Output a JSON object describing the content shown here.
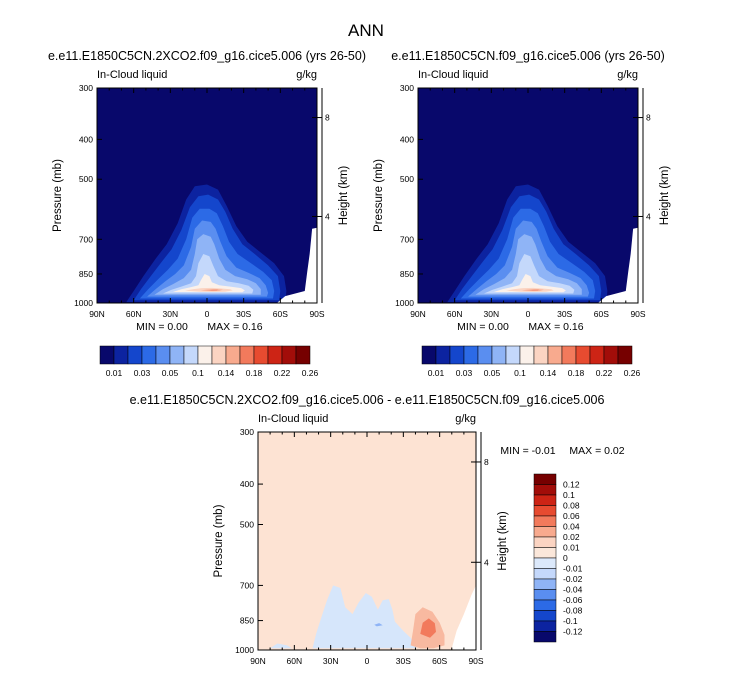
{
  "figure": {
    "title": "ANN"
  },
  "chart_data": [
    {
      "type": "contour",
      "title": "e.e11.E1850C5CN.2XCO2.f09_g16.cice5.006 (yrs 26-50)",
      "left_label": "In-Cloud liquid",
      "right_label": "g/kg",
      "ylabel": "Pressure (mb)",
      "ylabel_right": "Height (km)",
      "x_ticks": [
        "90N",
        "60N",
        "30N",
        "0",
        "30S",
        "60S",
        "90S"
      ],
      "y_ticks": [
        "300",
        "400",
        "500",
        "700",
        "850",
        "1000"
      ],
      "y_ticks_right": [
        "8",
        "4"
      ],
      "ylim": [
        1000,
        300
      ],
      "min_text": "MIN =   0.00",
      "max_text": "MAX =   0.16",
      "max_value": 0.16,
      "min_value": 0.0
    },
    {
      "type": "contour",
      "title": "e.e11.E1850C5CN.f09_g16.cice5.006 (yrs 26-50)",
      "left_label": "In-Cloud liquid",
      "right_label": "g/kg",
      "ylabel": "Pressure (mb)",
      "ylabel_right": "Height (km)",
      "x_ticks": [
        "90N",
        "60N",
        "30N",
        "0",
        "30S",
        "60S",
        "90S"
      ],
      "y_ticks": [
        "300",
        "400",
        "500",
        "700",
        "850",
        "1000"
      ],
      "y_ticks_right": [
        "8",
        "4"
      ],
      "ylim": [
        1000,
        300
      ],
      "min_text": "MIN =   0.00",
      "max_text": "MAX =   0.16",
      "max_value": 0.16,
      "min_value": 0.0
    },
    {
      "type": "contour",
      "title": "e.e11.E1850C5CN.2XCO2.f09_g16.cice5.006 - e.e11.E1850C5CN.f09_g16.cice5.006",
      "left_label": "In-Cloud liquid",
      "right_label": "g/kg",
      "ylabel": "Pressure (mb)",
      "ylabel_right": "Height (km)",
      "x_ticks": [
        "90N",
        "60N",
        "30N",
        "0",
        "30S",
        "60S",
        "90S"
      ],
      "y_ticks": [
        "300",
        "400",
        "500",
        "700",
        "850",
        "1000"
      ],
      "y_ticks_right": [
        "8",
        "4"
      ],
      "ylim": [
        1000,
        300
      ],
      "min_text": "MIN =  -0.01",
      "max_text": "MAX =   0.02",
      "max_value": 0.02,
      "min_value": -0.01
    }
  ],
  "colorbar_top": {
    "labels": [
      "0.01",
      "0.03",
      "0.05",
      "0.1",
      "0.14",
      "0.18",
      "0.22",
      "0.26"
    ],
    "colors": [
      "#08086b",
      "#0c23a0",
      "#1446cc",
      "#2c6ae6",
      "#5a8ef0",
      "#8fb4f6",
      "#c4d8fb",
      "#fbf1ea",
      "#fbd4c2",
      "#f8aa8e",
      "#f27a5c",
      "#e74b30",
      "#cd2415",
      "#a20d09",
      "#760000"
    ]
  },
  "colorbar_diff": {
    "labels": [
      "0.12",
      "0.1",
      "0.08",
      "0.06",
      "0.04",
      "0.02",
      "0.01",
      "0",
      "-0.01",
      "-0.02",
      "-0.04",
      "-0.06",
      "-0.08",
      "-0.1",
      "-0.12"
    ],
    "colors": [
      "#760000",
      "#a20d09",
      "#cd2415",
      "#e74b30",
      "#f27a5c",
      "#f8aa8e",
      "#fbd4c2",
      "#fbe7da",
      "#dce9fb",
      "#c4d8fb",
      "#8fb4f6",
      "#5a8ef0",
      "#2c6ae6",
      "#1446cc",
      "#0c23a0",
      "#08086b"
    ]
  }
}
